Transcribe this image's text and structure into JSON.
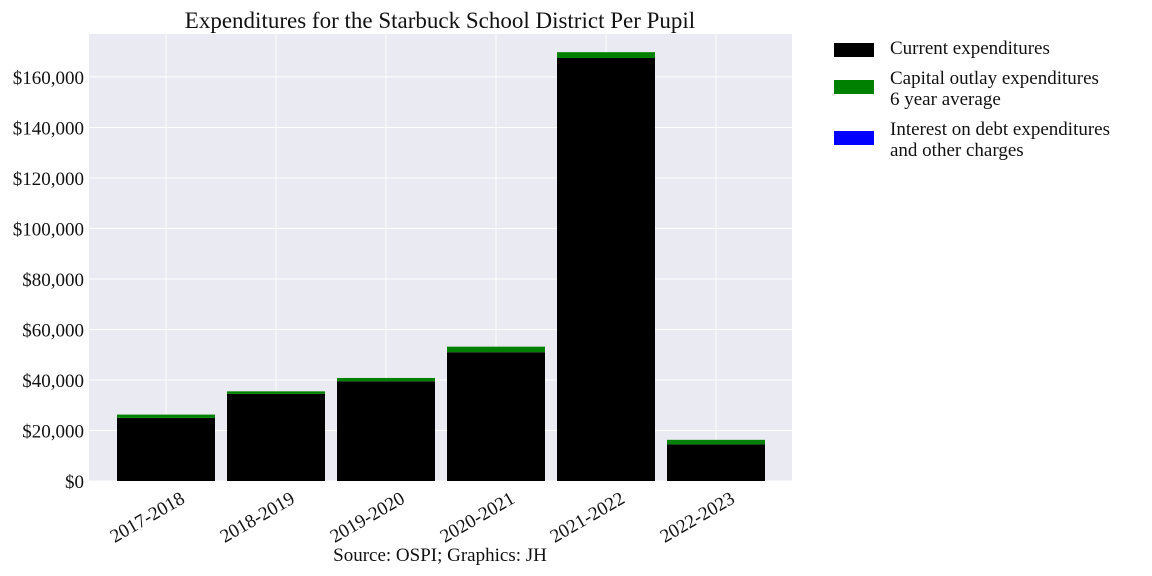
{
  "chart_data": {
    "type": "bar",
    "stacked": true,
    "title": "Expenditures for the Starbuck School District Per Pupil",
    "source": "Source: OSPI; Graphics: JH",
    "categories": [
      "2017-2018",
      "2018-2019",
      "2019-2020",
      "2020-2021",
      "2021-2022",
      "2022-2023"
    ],
    "series": [
      {
        "name": "Current expenditures",
        "color": "#000000",
        "values": [
          25000,
          34500,
          39500,
          51000,
          167500,
          14500
        ]
      },
      {
        "name": "Capital outlay expenditures 6 year average",
        "legend_lines": [
          "Capital outlay expenditures",
          "6 year average"
        ],
        "color": "#008000",
        "values": [
          1300,
          1000,
          1300,
          2200,
          2300,
          1800
        ]
      },
      {
        "name": "Interest on debt expenditures and other charges",
        "legend_lines": [
          "Interest on debt expenditures",
          "and other charges"
        ],
        "color": "#0000ff",
        "values": [
          0,
          0,
          0,
          0,
          0,
          0
        ]
      }
    ],
    "ylim": [
      0,
      177000
    ],
    "yticks": [
      0,
      20000,
      40000,
      60000,
      80000,
      100000,
      120000,
      140000,
      160000
    ],
    "ytick_labels": [
      "$0",
      "$20,000",
      "$40,000",
      "$60,000",
      "$80,000",
      "$100,000",
      "$120,000",
      "$140,000",
      "$160,000"
    ],
    "grid": true,
    "legend_position": "outside-right-top",
    "background_color": "#eaeaf2"
  }
}
